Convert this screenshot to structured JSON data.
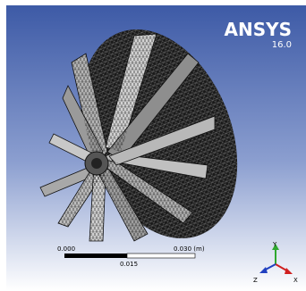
{
  "logo": {
    "brand": "ANSYS",
    "version": "16.0"
  },
  "scale_bar": {
    "start_label": "0.000",
    "end_label": "0.030 (m)",
    "mid_label": "0.015"
  },
  "triad": {
    "y": "Y",
    "z": "Z",
    "x": "X"
  }
}
